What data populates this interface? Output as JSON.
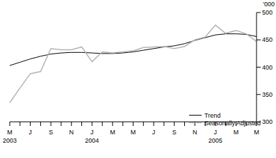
{
  "chart_data": {
    "type": "line",
    "y_label": "'000",
    "categories": [
      "M\n2003",
      null,
      "J",
      null,
      "S",
      null,
      "N",
      null,
      "J\n2004",
      null,
      "M",
      null,
      "M",
      null,
      "J",
      null,
      "S",
      null,
      "N",
      null,
      "J\n2005",
      null,
      "M",
      null,
      "M"
    ],
    "series": [
      {
        "name": "Trend",
        "color": "#000000",
        "values": [
          403,
          409,
          415,
          420,
          424,
          426,
          427,
          427,
          426,
          425,
          425,
          426,
          428,
          431,
          434,
          437,
          439,
          443,
          449,
          454,
          459,
          461,
          461,
          460,
          456
        ]
      },
      {
        "name": "Seasonally Adjusted",
        "color": "#b4b4b4",
        "values": [
          335,
          362,
          388,
          392,
          434,
          432,
          432,
          437,
          410,
          428,
          426,
          428,
          430,
          436,
          437,
          438,
          434,
          438,
          450,
          455,
          477,
          462,
          467,
          461,
          447
        ]
      }
    ],
    "ylim": [
      300,
      500
    ],
    "yticks": [
      300,
      350,
      400,
      450,
      500
    ],
    "grid": false,
    "legend": "bottom right"
  }
}
